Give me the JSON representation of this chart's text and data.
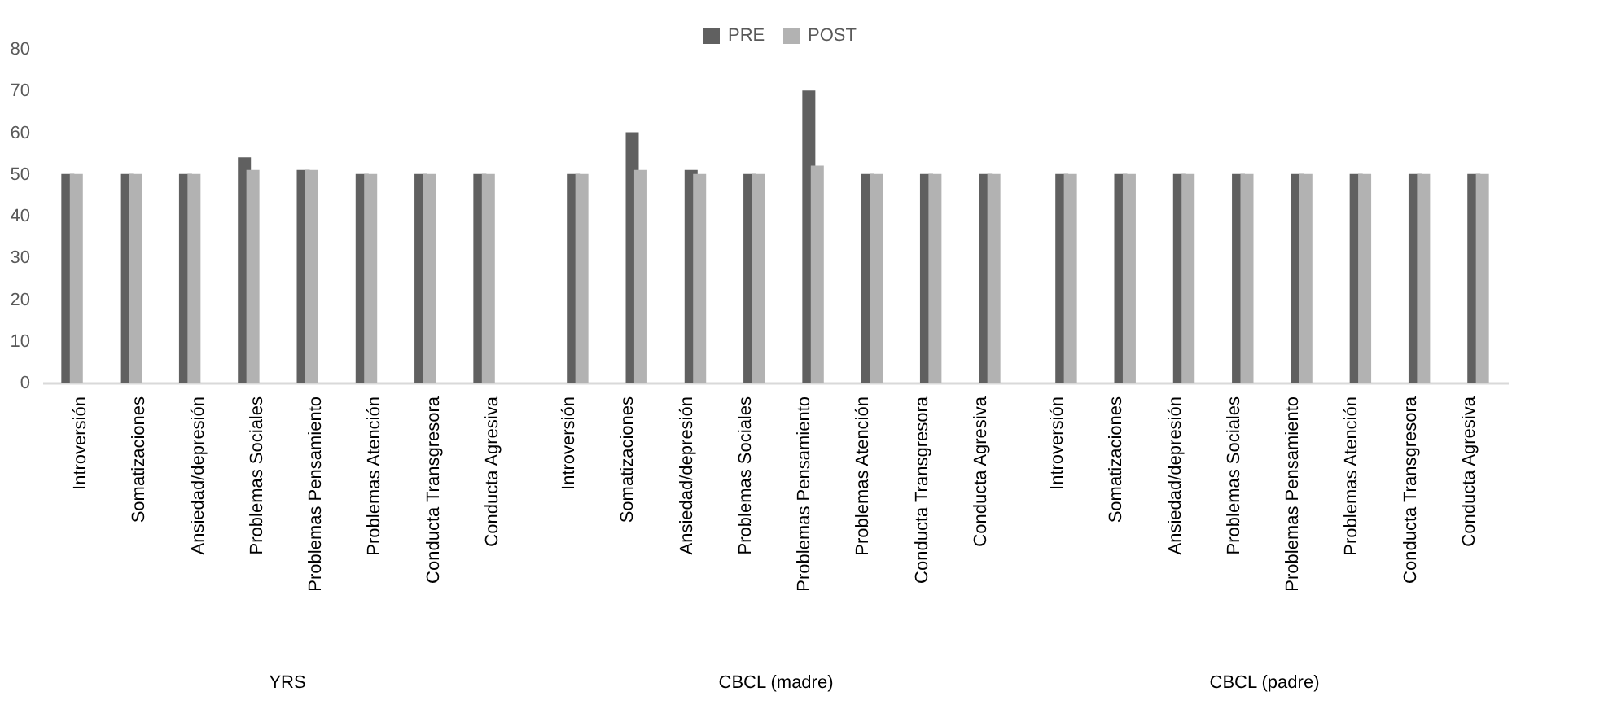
{
  "chart_data": [
    {
      "type": "bar",
      "xlabel": "YRS",
      "categories": [
        "Introversión",
        "Somatizaciones",
        "Ansiedad/depresión",
        "Problemas Sociales",
        "Problemas Pensamiento",
        "Problemas Atención",
        "Conducta Transgresora",
        "Conducta Agresiva"
      ],
      "series": [
        {
          "name": "PRE",
          "color": "#606060",
          "values": [
            50,
            50,
            50,
            54,
            51,
            50,
            50,
            50
          ]
        },
        {
          "name": "POST",
          "color": "#b2b2b2",
          "values": [
            50,
            50,
            50,
            51,
            51,
            50,
            50,
            50
          ]
        }
      ],
      "ylim": [
        0,
        80
      ],
      "yticks": [
        0,
        10,
        20,
        30,
        40,
        50,
        60,
        70,
        80
      ],
      "grid": false,
      "legend": "top"
    },
    {
      "type": "bar",
      "xlabel": "CBCL (madre)",
      "categories": [
        "Introversión",
        "Somatizaciones",
        "Ansiedad/depresión",
        "Problemas Sociales",
        "Problemas Pensamiento",
        "Problemas Atención",
        "Conducta Transgresora",
        "Conducta Agresiva"
      ],
      "series": [
        {
          "color": "#606060",
          "values": [
            50,
            60,
            51,
            50,
            70,
            50,
            50,
            50
          ]
        },
        {
          "color": "#b2b2b2",
          "values": [
            50,
            51,
            50,
            50,
            52,
            50,
            50,
            50
          ]
        }
      ],
      "ylim": [
        0,
        80
      ],
      "yticks": [
        0,
        10,
        20,
        30,
        40,
        50,
        60,
        70,
        80
      ],
      "grid": false,
      "legend": false,
      "tick_labels": "x"
    },
    {
      "type": "bar",
      "xlabel": "CBCL (padre)",
      "categories": [
        "Introversión",
        "Somatizaciones",
        "Ansiedad/depresión",
        "Problemas Sociales",
        "Problemas Pensamiento",
        "Problemas Atención",
        "Conducta Transgresora",
        "Conducta Agresiva"
      ],
      "series": [
        {
          "color": "#606060",
          "values": [
            50,
            50,
            50,
            50,
            50,
            50,
            50,
            50
          ]
        },
        {
          "color": "#b2b2b2",
          "values": [
            50,
            50,
            50,
            50,
            50,
            50,
            50,
            50
          ]
        }
      ],
      "ylim": [
        0,
        80
      ],
      "yticks": [
        0,
        10,
        20,
        30,
        40,
        50,
        60,
        70,
        80
      ],
      "grid": false,
      "legend": false,
      "tick_labels": "x"
    }
  ]
}
